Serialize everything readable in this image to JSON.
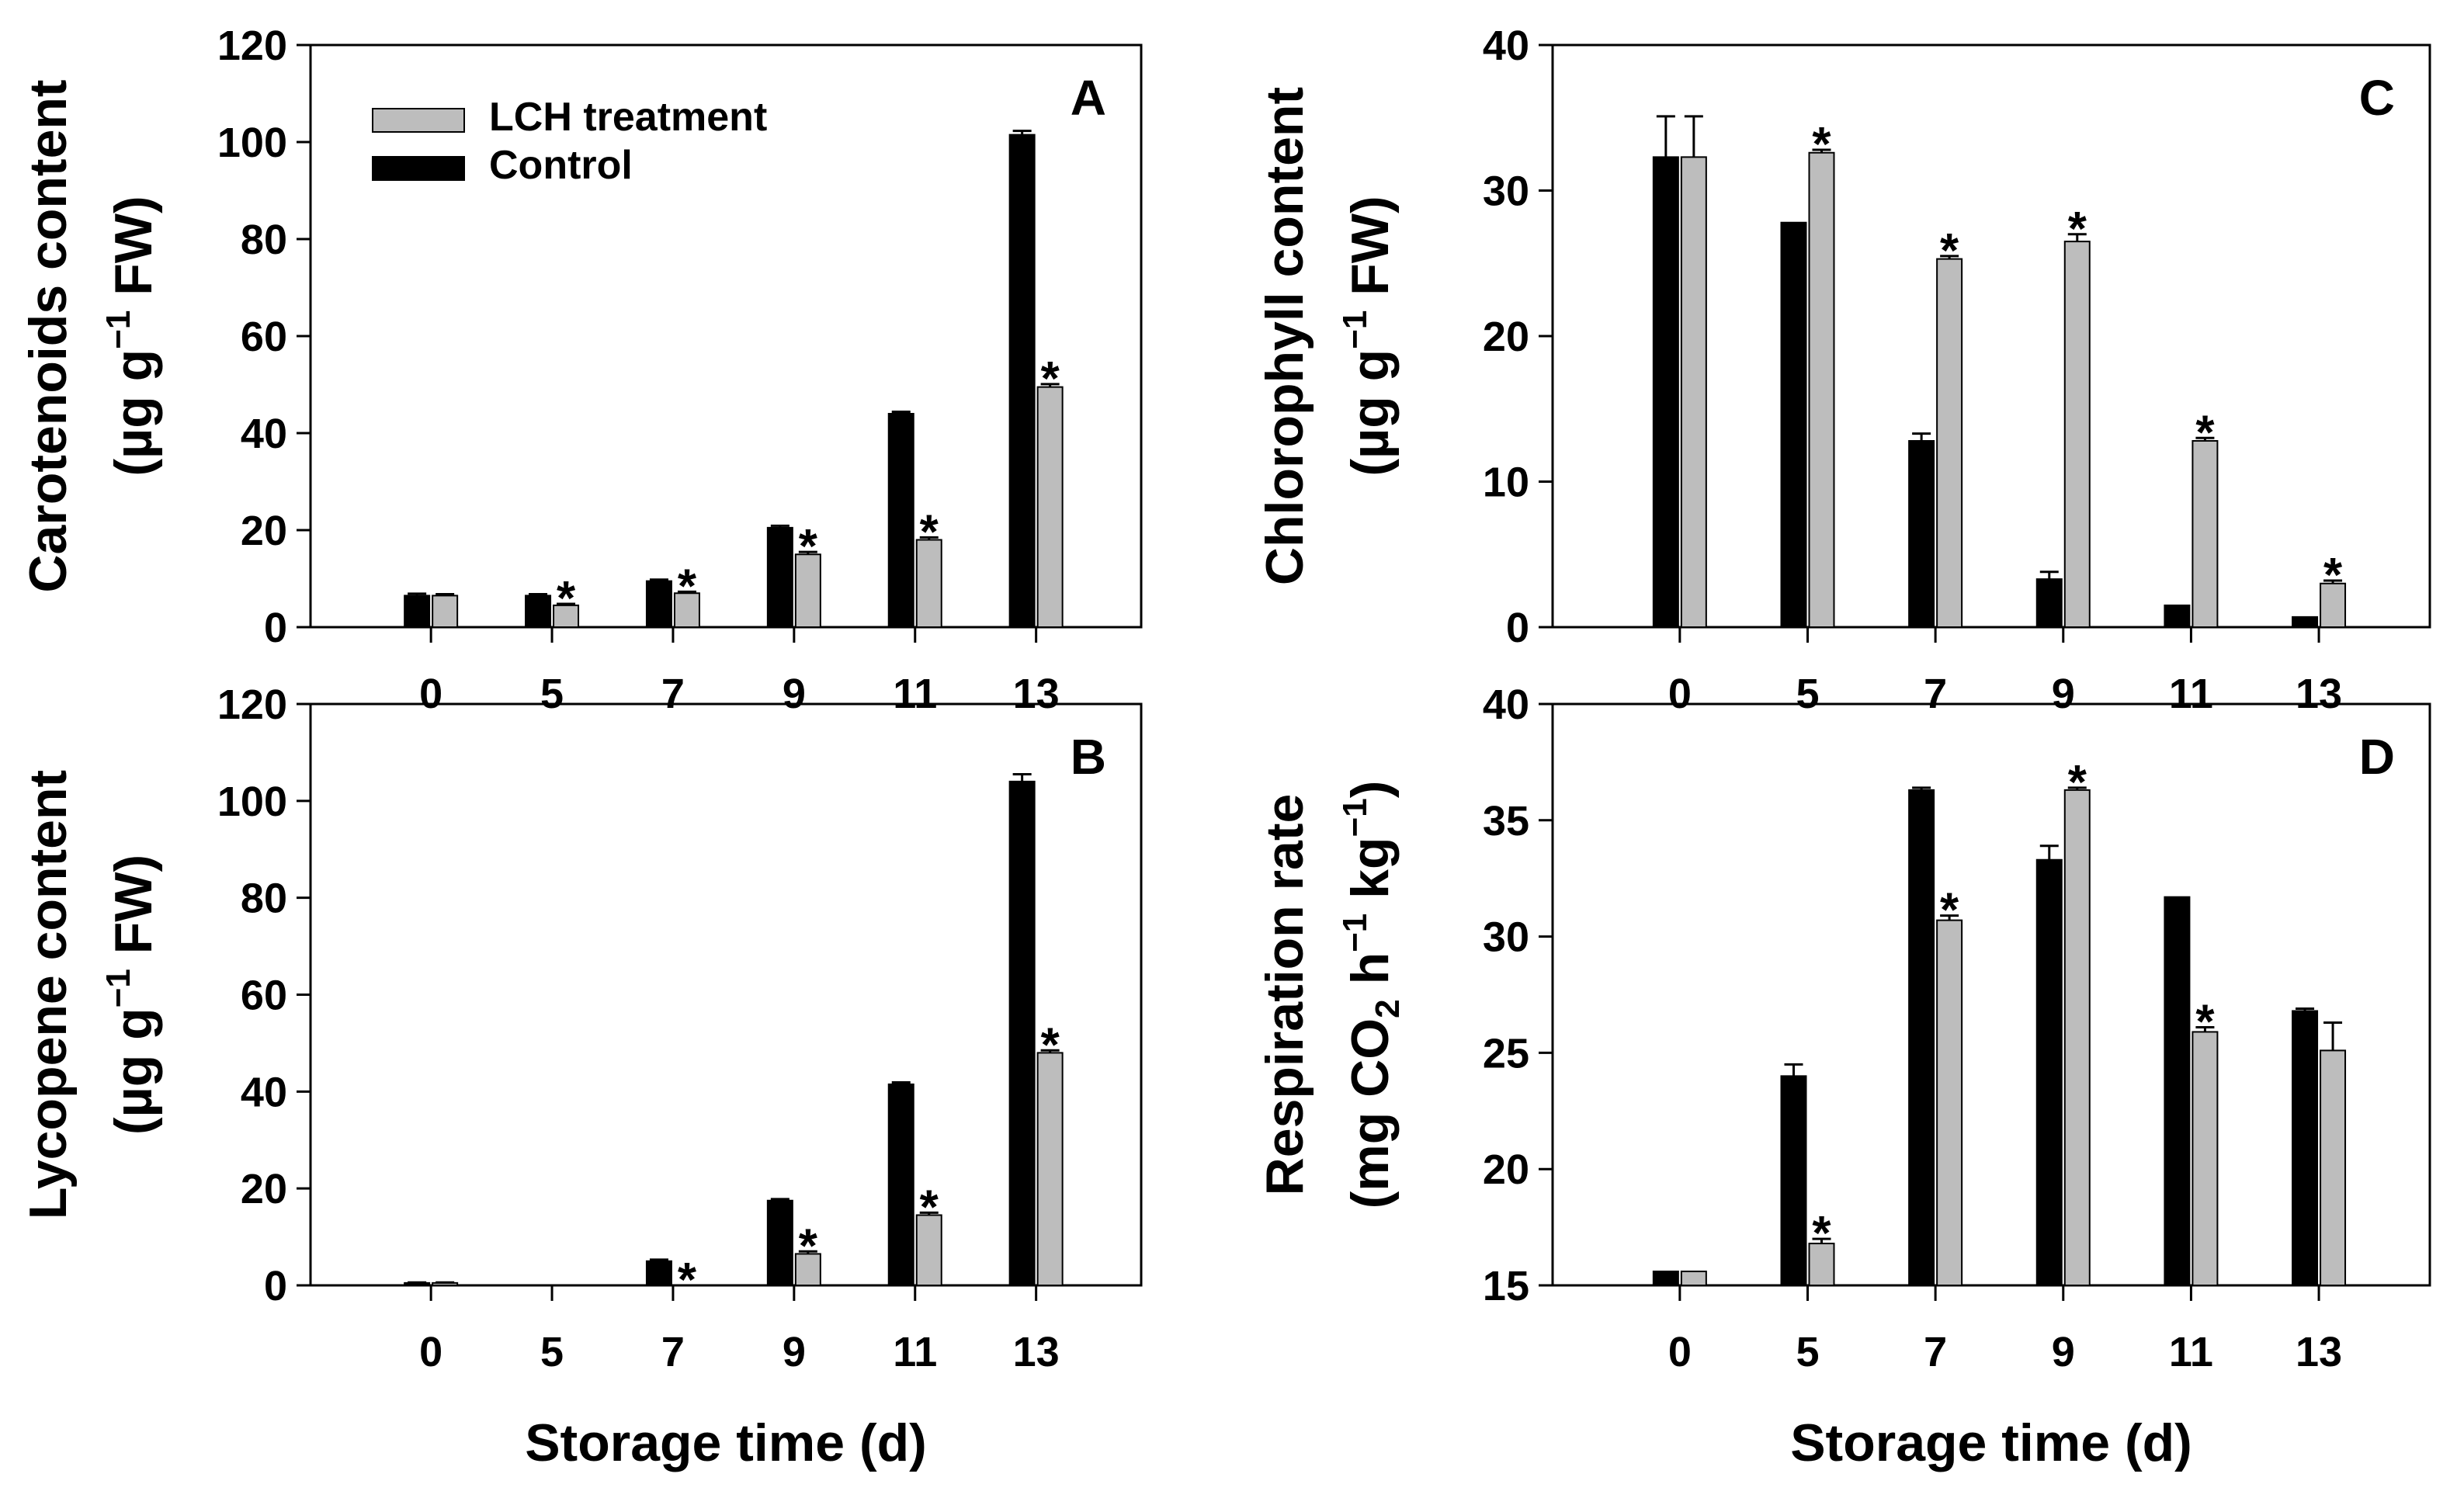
{
  "chart_data": [
    {
      "panel": "A",
      "type": "bar",
      "categories": [
        "0",
        "5",
        "7",
        "9",
        "11",
        "13"
      ],
      "xlabel": "",
      "ylabel_main": "Carotenoids content",
      "ylabel_unit_pre": "(µg g",
      "ylabel_unit_sup": "−1",
      "ylabel_unit_post": " FW)",
      "ylim": [
        0,
        120
      ],
      "yticks": [
        "0",
        "20",
        "40",
        "60",
        "80",
        "100",
        "120"
      ],
      "series": [
        {
          "name": "Control",
          "color": "#000000",
          "values": [
            6.5,
            6.5,
            9.5,
            20.5,
            44,
            101.5
          ],
          "errors": [
            0.4,
            0.3,
            0.3,
            0.4,
            0.4,
            0.8
          ]
        },
        {
          "name": "LCH treatment",
          "color": "#bdbdbd",
          "values": [
            6.5,
            4.5,
            7,
            15,
            18,
            49.5
          ],
          "errors": [
            0.3,
            0.3,
            0.3,
            0.5,
            0.5,
            0.6
          ]
        }
      ],
      "significance": [
        "",
        "*",
        "*",
        "*",
        "*",
        "*"
      ]
    },
    {
      "panel": "B",
      "type": "bar",
      "categories": [
        "0",
        "5",
        "7",
        "9",
        "11",
        "13"
      ],
      "xlabel": "Storage time (d)",
      "ylabel_main": "Lycopene content",
      "ylabel_unit_pre": "(µg g",
      "ylabel_unit_sup": "−1",
      "ylabel_unit_post": " FW)",
      "ylim": [
        0,
        120
      ],
      "yticks": [
        "0",
        "20",
        "40",
        "60",
        "80",
        "100",
        "120"
      ],
      "series": [
        {
          "name": "Control",
          "color": "#000000",
          "values": [
            0.5,
            0,
            5,
            17.5,
            41.5,
            104
          ],
          "errors": [
            0.1,
            0,
            0.3,
            0.3,
            0.4,
            1.5
          ]
        },
        {
          "name": "LCH treatment",
          "color": "#bdbdbd",
          "values": [
            0.5,
            0,
            0,
            6.5,
            14.5,
            48
          ],
          "errors": [
            0.1,
            0,
            0,
            0.5,
            0.5,
            0.5
          ]
        }
      ],
      "significance": [
        "",
        "",
        "*",
        "*",
        "*",
        "*"
      ]
    },
    {
      "panel": "C",
      "type": "bar",
      "categories": [
        "0",
        "5",
        "7",
        "9",
        "11",
        "13"
      ],
      "xlabel": "",
      "ylabel_main": "Chlorophyll content",
      "ylabel_unit_pre": "(µg g",
      "ylabel_unit_sup": "−1",
      "ylabel_unit_post": " FW)",
      "ylim": [
        0,
        40
      ],
      "yticks": [
        "0",
        "10",
        "20",
        "30",
        "40"
      ],
      "series": [
        {
          "name": "Control",
          "color": "#000000",
          "values": [
            32.3,
            27.8,
            12.8,
            3.3,
            1.5,
            0.7
          ],
          "errors": [
            2.8,
            0,
            0.5,
            0.5,
            0,
            0
          ]
        },
        {
          "name": "LCH treatment",
          "color": "#bdbdbd",
          "values": [
            32.3,
            32.6,
            25.3,
            26.5,
            12.8,
            3
          ],
          "errors": [
            2.8,
            0.2,
            0.2,
            0.5,
            0.2,
            0.2
          ]
        }
      ],
      "significance": [
        "",
        "*",
        "*",
        "*",
        "*",
        "*"
      ]
    },
    {
      "panel": "D",
      "type": "bar",
      "categories": [
        "0",
        "5",
        "7",
        "9",
        "11",
        "13"
      ],
      "xlabel": "Storage time (d)",
      "ylabel_main": "Respiration rate",
      "ylabel_unit_pre": "(mg CO",
      "ylabel_unit_sub": "2",
      "ylabel_unit_mid": " h",
      "ylabel_unit_sup": "−1",
      "ylabel_unit_mid2": " kg",
      "ylabel_unit_sup2": "−1",
      "ylabel_unit_post": ")",
      "ylim": [
        15,
        40
      ],
      "yticks": [
        "15",
        "20",
        "25",
        "30",
        "35",
        "40"
      ],
      "series": [
        {
          "name": "Control",
          "color": "#000000",
          "values": [
            15.6,
            24,
            36.3,
            33.3,
            31.7,
            26.8
          ],
          "errors": [
            0,
            0.5,
            0.1,
            0.6,
            0,
            0.1
          ]
        },
        {
          "name": "LCH treatment",
          "color": "#bdbdbd",
          "values": [
            15.6,
            16.8,
            30.7,
            36.3,
            25.9,
            25.1
          ],
          "errors": [
            0,
            0.2,
            0.2,
            0.1,
            0.2,
            1.2
          ]
        }
      ],
      "significance": [
        "",
        "*",
        "*",
        "*",
        "*",
        ""
      ]
    }
  ],
  "legend": {
    "items": [
      {
        "label": "LCH treatment",
        "color": "#bdbdbd"
      },
      {
        "label": "Control",
        "color": "#000000"
      }
    ]
  }
}
